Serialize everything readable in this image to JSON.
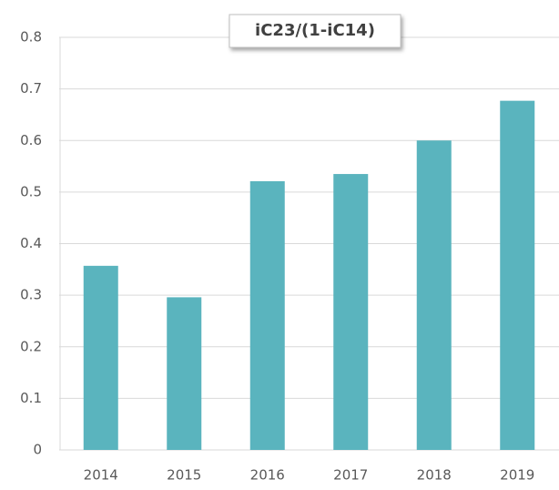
{
  "chart_data": {
    "type": "bar",
    "title": "iC23/(1-iC14)",
    "categories": [
      "2014",
      "2015",
      "2016",
      "2017",
      "2018",
      "2019"
    ],
    "values": [
      0.357,
      0.296,
      0.521,
      0.535,
      0.6,
      0.677
    ],
    "color": "#5ab4be",
    "ylim": [
      0,
      0.8
    ],
    "yticks": [
      0,
      0.1,
      0.2,
      0.3,
      0.4,
      0.5,
      0.6,
      0.7,
      0.8
    ],
    "grid": true
  }
}
